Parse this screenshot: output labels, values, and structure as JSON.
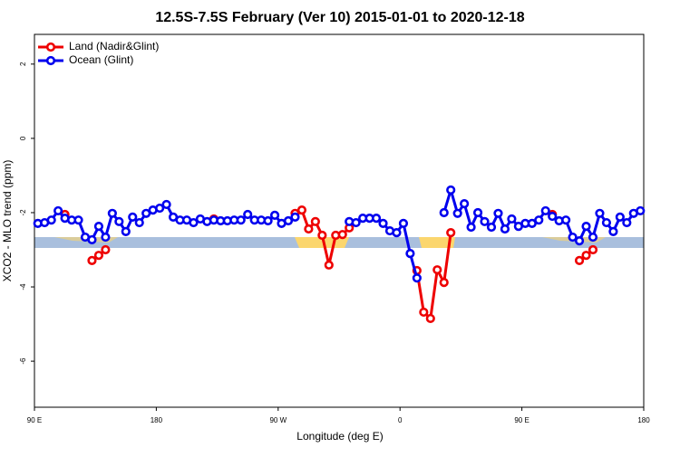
{
  "chart_data": {
    "type": "line",
    "title": "12.5S-7.5S February (Ver 10)   2015-01-01 to 2020-12-18",
    "xlabel": "Longitude (deg E)",
    "ylabel": "XCO2 - MLO trend (ppm)",
    "x": [
      92.5,
      97.5,
      102.5,
      107.5,
      112.5,
      117.5,
      122.5,
      127.5,
      132.5,
      137.5,
      142.5,
      147.5,
      152.5,
      157.5,
      162.5,
      167.5,
      172.5,
      177.5,
      182.5,
      187.5,
      192.5,
      197.5,
      202.5,
      207.5,
      212.5,
      217.5,
      222.5,
      227.5,
      232.5,
      237.5,
      242.5,
      247.5,
      252.5,
      257.5,
      262.5,
      267.5,
      272.5,
      277.5,
      282.5,
      287.5,
      292.5,
      297.5,
      302.5,
      307.5,
      312.5,
      317.5,
      322.5,
      327.5,
      332.5,
      337.5,
      342.5,
      347.5,
      352.5,
      357.5,
      362.5,
      367.5,
      372.5,
      377.5,
      382.5,
      387.5,
      392.5,
      397.5,
      402.5,
      407.5,
      412.5,
      417.5,
      422.5,
      427.5,
      432.5,
      437.5,
      442.5,
      447.5,
      452.5,
      457.5,
      462.5,
      467.5,
      472.5,
      477.5,
      482.5,
      487.5,
      492.5,
      497.5,
      502.5,
      507.5,
      512.5,
      517.5,
      522.5,
      527.5,
      532.5,
      537.5
    ],
    "series": [
      {
        "name": "Land (Nadir&Glint)",
        "color": "#ee0000",
        "values": [
          null,
          null,
          null,
          null,
          -2.05,
          null,
          null,
          null,
          -3.29,
          -3.15,
          -3.0,
          null,
          null,
          null,
          null,
          null,
          null,
          null,
          null,
          null,
          null,
          null,
          null,
          null,
          null,
          null,
          -2.17,
          null,
          null,
          null,
          null,
          null,
          null,
          null,
          null,
          null,
          null,
          null,
          -2.02,
          -1.93,
          -2.44,
          -2.24,
          -2.61,
          -3.41,
          -2.61,
          -2.59,
          -2.41,
          null,
          null,
          null,
          null,
          null,
          null,
          null,
          null,
          null,
          -3.56,
          -4.68,
          -4.85,
          -3.54,
          -3.88,
          -2.54,
          null,
          null,
          null,
          null,
          null,
          null,
          null,
          null,
          null,
          null,
          null,
          null,
          null,
          null,
          -2.05,
          null,
          null,
          null,
          -3.29,
          -3.15,
          -3.0,
          null,
          null,
          null,
          null,
          null,
          null,
          null
        ]
      },
      {
        "name": "Ocean (Glint)",
        "color": "#0000ee",
        "values": [
          -2.29,
          -2.27,
          -2.2,
          -1.95,
          -2.15,
          -2.2,
          -2.2,
          -2.66,
          -2.73,
          -2.37,
          -2.66,
          -2.02,
          -2.24,
          -2.51,
          -2.12,
          -2.27,
          -2.02,
          -1.93,
          -1.88,
          -1.78,
          -2.12,
          -2.2,
          -2.2,
          -2.27,
          -2.17,
          -2.24,
          -2.2,
          -2.22,
          -2.22,
          -2.2,
          -2.2,
          -2.05,
          -2.2,
          -2.2,
          -2.22,
          -2.07,
          -2.29,
          -2.22,
          -2.12,
          null,
          null,
          null,
          null,
          null,
          null,
          null,
          -2.24,
          -2.27,
          -2.15,
          -2.15,
          -2.15,
          -2.29,
          -2.49,
          -2.54,
          -2.29,
          -3.1,
          -3.76,
          null,
          null,
          null,
          -2.0,
          -1.39,
          -2.02,
          -1.76,
          -2.39,
          -2.0,
          -2.24,
          -2.39,
          -2.02,
          -2.44,
          -2.17,
          -2.37,
          -2.29,
          -2.29,
          -2.2,
          -1.95,
          -2.1,
          -2.22,
          -2.2,
          -2.66,
          -2.76,
          -2.37,
          -2.66,
          -2.02,
          -2.27,
          -2.51,
          -2.12,
          -2.27,
          -2.02,
          -1.95
        ]
      }
    ],
    "xlim": [
      90,
      540
    ],
    "xticks": [
      {
        "value": 90,
        "label": "90 E"
      },
      180,
      {
        "value": 270,
        "label": "90 W"
      },
      {
        "value": 360,
        "label": "0"
      },
      {
        "value": 450,
        "label": "90 E"
      },
      {
        "value": 540,
        "label": "180"
      }
    ],
    "ylim": [
      -7.24,
      2.8
    ],
    "yticks": [
      2,
      0,
      -2,
      -4,
      -6
    ],
    "legend": "top-left"
  }
}
